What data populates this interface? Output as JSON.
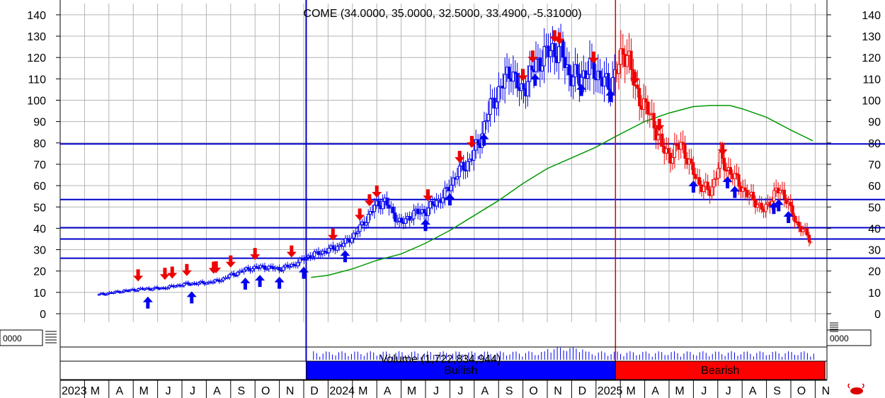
{
  "chart_data": {
    "type": "candlestick",
    "title": "COME (34.0000, 35.0000, 32.5000, 33.4900, -5.31000)",
    "y_ticks": [
      0,
      10,
      20,
      30,
      40,
      50,
      60,
      70,
      80,
      90,
      100,
      110,
      120,
      130,
      140
    ],
    "ylim": [
      -3,
      143
    ],
    "grid": true,
    "x_axis": {
      "labels": [
        "2023",
        "M",
        "A",
        "M",
        "J",
        "J",
        "A",
        "S",
        "O",
        "N",
        "D",
        "2024",
        "M",
        "A",
        "M",
        "J",
        "J",
        "A",
        "S",
        "O",
        "N",
        "D",
        "2025",
        "M",
        "A",
        "M",
        "J",
        "J",
        "A",
        "S",
        "O",
        "N"
      ],
      "month_start_index": 1,
      "last_index": 32
    },
    "horizontal_lines": [
      79.5,
      53.5,
      40.3,
      35,
      26
    ],
    "vertical_lines": [
      {
        "x": 10.1,
        "color": "#0000cc"
      },
      {
        "x": 22.8,
        "color": "#dd0000"
      }
    ],
    "price_series": [
      [
        1.6,
        9
      ],
      [
        2.5,
        10.5
      ],
      [
        3.2,
        11.5
      ],
      [
        4.2,
        12
      ],
      [
        5.2,
        14
      ],
      [
        6.0,
        14.5
      ],
      [
        6.5,
        15.5
      ],
      [
        7.0,
        18
      ],
      [
        7.7,
        21
      ],
      [
        8.3,
        22
      ],
      [
        9.0,
        21
      ],
      [
        9.6,
        23
      ],
      [
        10.2,
        27
      ],
      [
        10.8,
        29
      ],
      [
        11.3,
        31
      ],
      [
        11.8,
        34
      ],
      [
        12.3,
        40
      ],
      [
        12.9,
        50
      ],
      [
        13.3,
        53
      ],
      [
        13.6,
        48
      ],
      [
        14.0,
        42
      ],
      [
        14.5,
        47
      ],
      [
        15.0,
        48
      ],
      [
        15.4,
        52
      ],
      [
        15.8,
        56
      ],
      [
        16.3,
        66
      ],
      [
        16.7,
        70
      ],
      [
        17.2,
        80
      ],
      [
        17.5,
        92
      ],
      [
        17.8,
        100
      ],
      [
        18.2,
        108
      ],
      [
        18.5,
        115
      ],
      [
        18.9,
        103
      ],
      [
        19.2,
        110
      ],
      [
        19.6,
        118
      ],
      [
        20.2,
        124
      ],
      [
        20.6,
        122
      ],
      [
        20.9,
        112
      ],
      [
        21.3,
        110
      ],
      [
        21.7,
        115
      ],
      [
        22.1,
        112
      ],
      [
        22.5,
        106
      ],
      [
        22.9,
        116
      ],
      [
        23.3,
        124
      ],
      [
        23.6,
        104
      ],
      [
        24.0,
        98
      ],
      [
        24.4,
        88
      ],
      [
        24.8,
        76
      ],
      [
        25.1,
        74
      ],
      [
        25.5,
        80
      ],
      [
        25.9,
        68
      ],
      [
        26.3,
        60
      ],
      [
        26.7,
        57
      ],
      [
        27.1,
        72
      ],
      [
        27.4,
        68
      ],
      [
        27.8,
        62
      ],
      [
        28.2,
        56
      ],
      [
        28.6,
        52
      ],
      [
        28.9,
        48
      ],
      [
        29.4,
        58
      ],
      [
        29.8,
        55
      ],
      [
        30.2,
        42
      ],
      [
        30.5,
        40
      ],
      [
        30.8,
        33.5
      ]
    ],
    "trend_change_x": 22.8,
    "moving_average": [
      [
        10.3,
        17
      ],
      [
        11.0,
        18
      ],
      [
        12.0,
        21
      ],
      [
        13.0,
        25
      ],
      [
        14.0,
        28
      ],
      [
        15.0,
        33
      ],
      [
        16.0,
        39
      ],
      [
        17.0,
        46
      ],
      [
        18.0,
        53
      ],
      [
        19.0,
        61
      ],
      [
        20.0,
        68
      ],
      [
        21.0,
        73
      ],
      [
        22.0,
        78
      ],
      [
        22.8,
        83
      ],
      [
        24.0,
        90
      ],
      [
        25.0,
        94
      ],
      [
        26.0,
        97
      ],
      [
        26.7,
        97.5
      ],
      [
        27.5,
        97.5
      ],
      [
        28.0,
        96
      ],
      [
        29.0,
        92
      ],
      [
        30.0,
        86
      ],
      [
        30.9,
        81
      ]
    ],
    "down_arrows": [
      3.2,
      4.3,
      4.6,
      5.2,
      6.3,
      6.4,
      7.0,
      8.0,
      9.5,
      11.2,
      12.3,
      12.7,
      13.0,
      15.1,
      16.4,
      16.9,
      19.0,
      19.4,
      20.3,
      20.5,
      21.9,
      23.6,
      24.6,
      27.2
    ],
    "up_arrows": [
      3.6,
      5.4,
      7.6,
      8.2,
      9.0,
      10.0,
      11.7,
      15.0,
      16.0,
      17.4,
      19.5,
      21.4,
      22.6,
      26.0,
      27.4,
      27.7,
      29.3,
      29.5,
      29.9
    ],
    "volume": {
      "label": "Volume (1,722,834,944)",
      "box_left_label": "0000",
      "box_right_label": "0000"
    },
    "bands": [
      {
        "label": "Bullish",
        "from": 10.1,
        "to": 22.8,
        "color": "#0000ff"
      },
      {
        "label": "Bearish",
        "from": 22.8,
        "to": 31.4,
        "color": "#ff0000"
      }
    ]
  }
}
